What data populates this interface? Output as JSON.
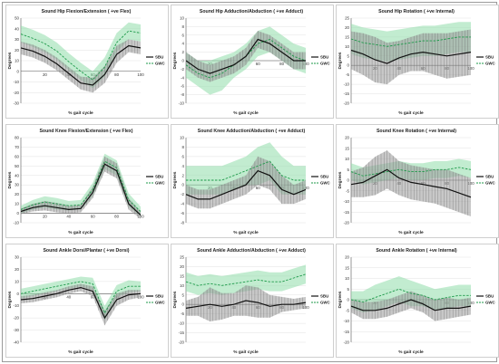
{
  "colors": {
    "sbu_line": "#111111",
    "sbu_band": "#9a9a9a",
    "gwc_line": "#1e9a4a",
    "gwc_band": "#8fdcaa"
  },
  "legend": {
    "sbu": "SBU",
    "gwc": "GWC"
  },
  "chart_data": [
    {
      "type": "line",
      "title": "Sound Hip Flexion/Extension ( +ve Flex)",
      "ylabel": "Degrees",
      "xlabel": "% gait cycle",
      "xlim": [
        0,
        100
      ],
      "ylim": [
        -30,
        50
      ],
      "yticks": [
        -30,
        -20,
        -10,
        0,
        10,
        20,
        30,
        40,
        50
      ],
      "xticks": [
        20,
        40,
        60,
        80,
        100
      ],
      "x": [
        0,
        10,
        20,
        30,
        40,
        50,
        60,
        70,
        80,
        90,
        100
      ],
      "series": [
        {
          "name": "SBU",
          "values": [
            22,
            19,
            14,
            7,
            -2,
            -11,
            -13,
            -3,
            16,
            24,
            22
          ],
          "sd": [
            6,
            6,
            6,
            6,
            6,
            6,
            7,
            8,
            8,
            6,
            6
          ]
        },
        {
          "name": "GWC",
          "values": [
            35,
            31,
            26,
            19,
            9,
            0,
            -8,
            4,
            27,
            38,
            36
          ],
          "sd": [
            8,
            8,
            8,
            8,
            8,
            8,
            8,
            9,
            9,
            8,
            8
          ]
        }
      ]
    },
    {
      "type": "line",
      "title": "Sound Hip Adduction/Abduction ( +ve Adduct)",
      "ylabel": "Degrees",
      "xlabel": "% gait cycle",
      "xlim": [
        0,
        100
      ],
      "ylim": [
        -10,
        10
      ],
      "yticks": [
        -10,
        -8,
        -6,
        -4,
        -2,
        0,
        2,
        4,
        6,
        8,
        10
      ],
      "xticks": [
        20,
        40,
        60,
        80,
        100
      ],
      "x": [
        0,
        10,
        20,
        30,
        40,
        50,
        60,
        70,
        80,
        90,
        100
      ],
      "series": [
        {
          "name": "SBU",
          "values": [
            0,
            -2,
            -3,
            -2,
            -1,
            1,
            5,
            4,
            2,
            0,
            0
          ],
          "sd": [
            2,
            2,
            2,
            2,
            2,
            2,
            2,
            2,
            2,
            2,
            2
          ]
        },
        {
          "name": "GWC",
          "values": [
            -1,
            -3,
            -4,
            -3,
            -1,
            1,
            4,
            5,
            3,
            1,
            0
          ],
          "sd": [
            3,
            3,
            4,
            4,
            3,
            3,
            3,
            3,
            3,
            3,
            3
          ]
        }
      ]
    },
    {
      "type": "line",
      "title": "Sound Hip Rotation ( +ve Internal)",
      "ylabel": "Degrees",
      "xlabel": "% gait cycle",
      "xlim": [
        0,
        100
      ],
      "ylim": [
        -20,
        25
      ],
      "yticks": [
        -20,
        -15,
        -10,
        -5,
        0,
        5,
        10,
        15,
        20,
        25
      ],
      "xticks": [
        20,
        40,
        60,
        80,
        100
      ],
      "x": [
        0,
        10,
        20,
        30,
        40,
        50,
        60,
        70,
        80,
        90,
        100
      ],
      "series": [
        {
          "name": "SBU",
          "values": [
            8,
            6,
            3,
            1,
            4,
            6,
            7,
            6,
            5,
            6,
            7
          ],
          "sd": [
            10,
            11,
            12,
            11,
            9,
            9,
            10,
            11,
            12,
            12,
            12
          ]
        },
        {
          "name": "GWC",
          "values": [
            14,
            12,
            11,
            10,
            11,
            12,
            13,
            13,
            14,
            15,
            15
          ],
          "sd": [
            8,
            8,
            8,
            8,
            8,
            8,
            8,
            8,
            8,
            8,
            8
          ]
        }
      ]
    },
    {
      "type": "line",
      "title": "Sound Knee Flexion/Extension ( +ve Flex)",
      "ylabel": "Degrees",
      "xlabel": "% gait cycle",
      "xlim": [
        0,
        100
      ],
      "ylim": [
        -10,
        80
      ],
      "yticks": [
        -10,
        0,
        10,
        20,
        30,
        40,
        50,
        60,
        70,
        80
      ],
      "xticks": [
        20,
        40,
        60,
        80,
        100
      ],
      "x": [
        0,
        10,
        20,
        30,
        40,
        50,
        60,
        70,
        80,
        90,
        100
      ],
      "series": [
        {
          "name": "SBU",
          "values": [
            2,
            6,
            8,
            6,
            4,
            5,
            22,
            52,
            45,
            10,
            -2
          ],
          "sd": [
            3,
            4,
            5,
            5,
            4,
            4,
            6,
            8,
            8,
            6,
            4
          ]
        },
        {
          "name": "GWC",
          "values": [
            4,
            9,
            12,
            10,
            8,
            9,
            25,
            55,
            48,
            14,
            2
          ],
          "sd": [
            4,
            5,
            6,
            6,
            5,
            5,
            7,
            8,
            8,
            7,
            5
          ]
        }
      ]
    },
    {
      "type": "line",
      "title": "Sound Knee Adduction/Abduction ( +ve Adduct)",
      "ylabel": "Degrees",
      "xlabel": "% gait cycle",
      "xlim": [
        0,
        100
      ],
      "ylim": [
        -8,
        10
      ],
      "yticks": [
        -8,
        -6,
        -4,
        -2,
        0,
        2,
        4,
        6,
        8,
        10
      ],
      "xticks": [
        20,
        40,
        60,
        80,
        100
      ],
      "x": [
        0,
        10,
        20,
        30,
        40,
        50,
        60,
        70,
        80,
        90,
        100
      ],
      "series": [
        {
          "name": "SBU",
          "values": [
            -2,
            -3,
            -3,
            -2,
            -1,
            0,
            3,
            2,
            -1,
            -2,
            -1
          ],
          "sd": [
            2,
            2,
            2,
            2,
            2,
            2,
            3,
            3,
            3,
            2,
            2
          ]
        },
        {
          "name": "GWC",
          "values": [
            1,
            1,
            1,
            1,
            2,
            3,
            4,
            5,
            2,
            1,
            1
          ],
          "sd": [
            3,
            3,
            3,
            3,
            3,
            3,
            4,
            4,
            4,
            3,
            3
          ]
        }
      ]
    },
    {
      "type": "line",
      "title": "Sound Knee Rotation ( +ve Internal)",
      "ylabel": "Degrees",
      "xlabel": "% gait cycle",
      "xlim": [
        0,
        100
      ],
      "ylim": [
        -20,
        20
      ],
      "yticks": [
        -20,
        -15,
        -10,
        -5,
        0,
        5,
        10,
        15,
        20
      ],
      "xticks": [
        20,
        40,
        60,
        80,
        100
      ],
      "x": [
        0,
        10,
        20,
        30,
        40,
        50,
        60,
        70,
        80,
        90,
        100
      ],
      "series": [
        {
          "name": "SBU",
          "values": [
            -2,
            -1,
            2,
            5,
            1,
            -1,
            -2,
            -3,
            -4,
            -6,
            -8
          ],
          "sd": [
            6,
            7,
            9,
            9,
            8,
            8,
            8,
            8,
            9,
            9,
            9
          ]
        },
        {
          "name": "GWC",
          "values": [
            4,
            2,
            3,
            4,
            5,
            4,
            4,
            5,
            5,
            6,
            5
          ],
          "sd": [
            4,
            4,
            4,
            4,
            4,
            4,
            4,
            4,
            4,
            4,
            4
          ]
        }
      ]
    },
    {
      "type": "line",
      "title": "Sound Ankle Dorsi/Plantar ( +ve Dorsi)",
      "ylabel": "Degrees",
      "xlabel": "% gait cycle",
      "xlim": [
        0,
        100
      ],
      "ylim": [
        -40,
        30
      ],
      "yticks": [
        -40,
        -30,
        -20,
        -10,
        0,
        10,
        20,
        30
      ],
      "xticks": [
        20,
        40,
        60,
        80,
        100
      ],
      "x": [
        0,
        10,
        20,
        30,
        40,
        50,
        60,
        70,
        80,
        90,
        100
      ],
      "series": [
        {
          "name": "SBU",
          "values": [
            -5,
            -4,
            -2,
            0,
            3,
            5,
            2,
            -20,
            -5,
            -1,
            0
          ],
          "sd": [
            3,
            3,
            3,
            3,
            3,
            3,
            4,
            6,
            5,
            4,
            3
          ]
        },
        {
          "name": "GWC",
          "values": [
            0,
            2,
            4,
            6,
            8,
            10,
            8,
            -16,
            2,
            6,
            6
          ],
          "sd": [
            4,
            4,
            4,
            4,
            4,
            4,
            5,
            6,
            5,
            5,
            4
          ]
        }
      ]
    },
    {
      "type": "line",
      "title": "Sound Ankle Adduction/Abduction ( +ve Adduct)",
      "ylabel": "Degrees",
      "xlabel": "% gait cycle",
      "xlim": [
        0,
        100
      ],
      "ylim": [
        -20,
        25
      ],
      "yticks": [
        -20,
        -15,
        -10,
        -5,
        0,
        5,
        10,
        15,
        20,
        25
      ],
      "xticks": [
        20,
        40,
        60,
        80,
        100
      ],
      "x": [
        0,
        10,
        20,
        30,
        40,
        50,
        60,
        70,
        80,
        90,
        100
      ],
      "series": [
        {
          "name": "SBU",
          "values": [
            -2,
            -1,
            0,
            -1,
            0,
            2,
            1,
            -1,
            0,
            0,
            1
          ],
          "sd": [
            4,
            5,
            9,
            7,
            6,
            8,
            8,
            6,
            4,
            3,
            3
          ]
        },
        {
          "name": "GWC",
          "values": [
            12,
            10,
            11,
            10,
            11,
            12,
            13,
            12,
            12,
            14,
            16
          ],
          "sd": [
            5,
            5,
            5,
            5,
            5,
            5,
            5,
            5,
            5,
            5,
            5
          ]
        }
      ]
    },
    {
      "type": "line",
      "title": "Sound Ankle Rotation ( +ve Internal)",
      "ylabel": "Degrees",
      "xlabel": "% gait cycle",
      "xlim": [
        0,
        100
      ],
      "ylim": [
        -20,
        20
      ],
      "yticks": [
        -20,
        -15,
        -10,
        -5,
        0,
        5,
        10,
        15,
        20
      ],
      "xticks": [
        20,
        40,
        60,
        80,
        100
      ],
      "x": [
        0,
        10,
        20,
        30,
        40,
        50,
        60,
        70,
        80,
        90,
        100
      ],
      "series": [
        {
          "name": "SBU",
          "values": [
            -3,
            -5,
            -5,
            -4,
            -2,
            0,
            -2,
            -5,
            -4,
            -4,
            -3
          ],
          "sd": [
            3,
            4,
            4,
            4,
            4,
            4,
            4,
            5,
            5,
            4,
            4
          ]
        },
        {
          "name": "GWC",
          "values": [
            0,
            -1,
            1,
            3,
            5,
            3,
            2,
            0,
            1,
            2,
            2
          ],
          "sd": [
            4,
            5,
            6,
            6,
            6,
            6,
            5,
            5,
            5,
            5,
            5
          ]
        }
      ]
    }
  ]
}
